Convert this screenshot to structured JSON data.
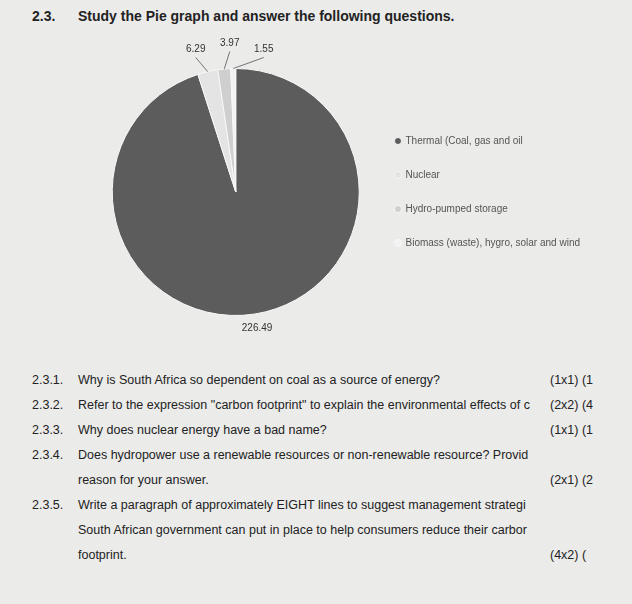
{
  "heading": {
    "number": "2.3.",
    "text": "Study the Pie graph and answer the following questions."
  },
  "chart_data": {
    "type": "pie",
    "categories": [
      "Thermal (Coal, gas and oil",
      "Nuclear",
      "Hydro-pumped storage",
      "Biomass (waste), hygro, solar and wind"
    ],
    "values": [
      226.49,
      6.29,
      3.97,
      1.55
    ],
    "colors": [
      "#5c5c5c",
      "#e4e4e4",
      "#cfcfcf",
      "#f3f3f3"
    ],
    "legend": "right",
    "data_labels": true
  },
  "questions": [
    {
      "number": "2.3.1.",
      "lines": [
        "Why is South Africa so dependent on coal as a source of energy?"
      ],
      "marks": "(1x1) (1"
    },
    {
      "number": "2.3.2.",
      "lines": [
        "Refer to the expression \"carbon footprint\" to explain the environmental effects of c"
      ],
      "marks": "(2x2) (4"
    },
    {
      "number": "2.3.3.",
      "lines": [
        "Why does nuclear energy have a bad name?"
      ],
      "marks": "(1x1) (1"
    },
    {
      "number": "2.3.4.",
      "lines": [
        "Does hydropower use a renewable resources or non-renewable resource? Provid",
        "reason for your answer."
      ],
      "marks": "(2x1) (2"
    },
    {
      "number": "2.3.5.",
      "lines": [
        "Write a paragraph of approximately EIGHT lines to suggest management strategi",
        "South African government can put in place to help consumers reduce their carbor",
        "footprint."
      ],
      "marks": "(4x2) ("
    }
  ]
}
